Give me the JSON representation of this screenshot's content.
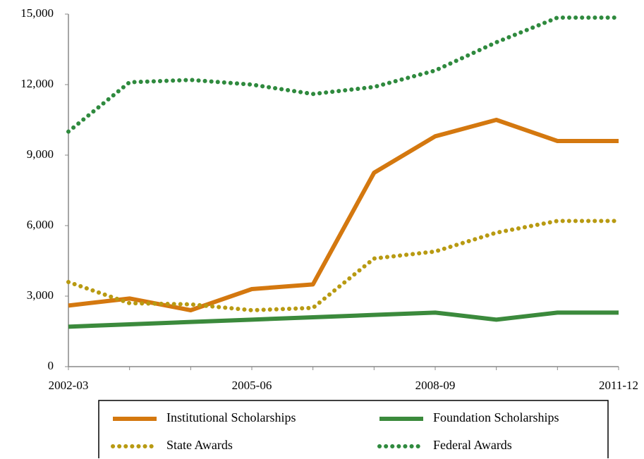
{
  "chart_data": {
    "type": "line",
    "categories": [
      "2002-03",
      null,
      null,
      "2005-06",
      null,
      null,
      "2008-09",
      null,
      null,
      "2011-12"
    ],
    "series": [
      {
        "name": "Institutional Scholarships",
        "color": "#d4780f",
        "style": "solid",
        "values": [
          2600,
          2900,
          2400,
          3300,
          3500,
          8250,
          9800,
          10500,
          9600,
          9600
        ]
      },
      {
        "name": "Foundation Scholarships",
        "color": "#3b8a3c",
        "style": "solid",
        "values": [
          1700,
          1800,
          1900,
          2000,
          2100,
          2200,
          2300,
          2000,
          2300,
          2300
        ]
      },
      {
        "name": "State Awards",
        "color": "#b89a12",
        "style": "dotted",
        "values": [
          3600,
          2700,
          2650,
          2400,
          2500,
          4600,
          4900,
          5700,
          6200,
          6200
        ]
      },
      {
        "name": "Federal Awards",
        "color": "#2f8a3e",
        "style": "dotted",
        "values": [
          10000,
          12100,
          12200,
          12000,
          11600,
          11900,
          12600,
          13800,
          14850,
          14850
        ]
      }
    ],
    "ylim": [
      0,
      15000
    ],
    "yticks": [
      0,
      {
        "value": 3000,
        "label": "3,000"
      },
      {
        "value": 6000,
        "label": "6,000"
      },
      {
        "value": 9000,
        "label": "9,000"
      },
      {
        "value": 12000,
        "label": "12,000"
      },
      {
        "value": 15000,
        "label": "15,000"
      }
    ],
    "legend": "bottom"
  }
}
